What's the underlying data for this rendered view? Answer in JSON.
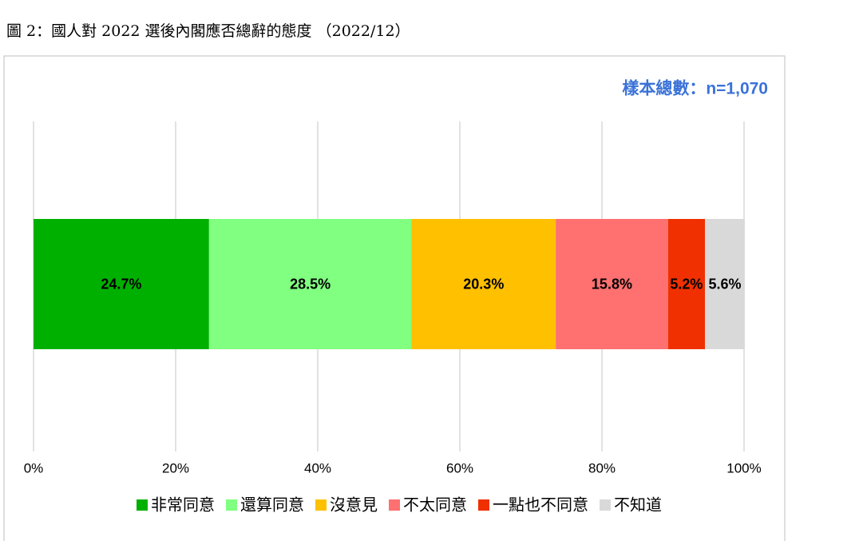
{
  "chart_data": {
    "type": "stacked-bar-horizontal",
    "title": "圖 2：國人對 2022 選後內閣應否總辭的態度 （2022/12）",
    "annotation": "樣本總數：n=1,070",
    "categories": [
      null
    ],
    "series": [
      {
        "name": "非常同意",
        "color": "#00b000",
        "values": [
          24.7
        ],
        "value_labels": [
          "24.7%"
        ]
      },
      {
        "name": "還算同意",
        "color": "#80ff80",
        "values": [
          28.5
        ],
        "value_labels": [
          "28.5%"
        ]
      },
      {
        "name": "沒意見",
        "color": "#ffc000",
        "values": [
          20.3
        ],
        "value_labels": [
          "20.3%"
        ]
      },
      {
        "name": "不太同意",
        "color": "#ff7070",
        "values": [
          15.8
        ],
        "value_labels": [
          "15.8%"
        ]
      },
      {
        "name": "一點也不同意",
        "color": "#f03000",
        "values": [
          5.2
        ],
        "value_labels": [
          "5.2%"
        ]
      },
      {
        "name": "不知道",
        "color": "#d9d9d9",
        "values": [
          5.6
        ],
        "value_labels": [
          "5.6%"
        ]
      }
    ],
    "xlim": [
      0,
      100
    ],
    "xticks": [
      {
        "value": 0,
        "label": "0%"
      },
      {
        "value": 20,
        "label": "20%"
      },
      {
        "value": 40,
        "label": "40%"
      },
      {
        "value": 60,
        "label": "60%"
      },
      {
        "value": 80,
        "label": "80%"
      },
      {
        "value": 100,
        "label": "100%"
      }
    ],
    "grid": true,
    "legend": "bottom"
  }
}
